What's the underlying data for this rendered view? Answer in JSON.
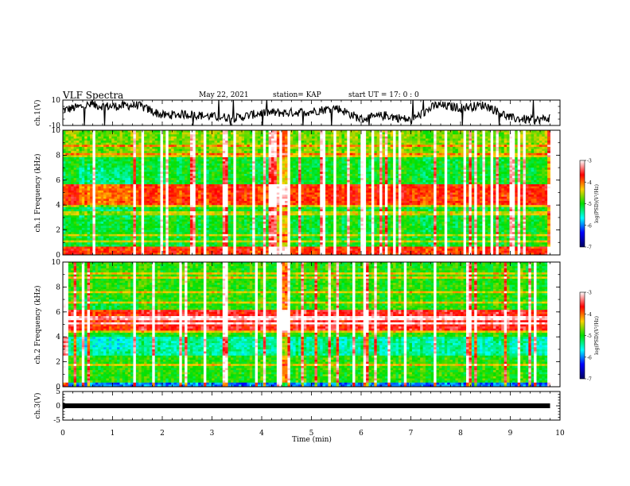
{
  "header": {
    "title": "VLF Spectra",
    "date": "May 22, 2021",
    "station": "station= KAP",
    "start": "start  UT =   17: 0  : 0"
  },
  "colorbar": {
    "label": "log(PSD)(V²/Hz)",
    "ticks": [
      -3,
      -4,
      -5,
      -6,
      -7
    ],
    "colors": [
      "#ffffff",
      "#ff0000",
      "#ffd000",
      "#00e000",
      "#00ffff",
      "#0000ff",
      "#000060"
    ]
  },
  "chart_data": [
    {
      "type": "line",
      "ylabel": "ch.1(V)",
      "ylim": [
        -10,
        10
      ],
      "yticks": [
        -10,
        10
      ],
      "xlim": [
        0,
        10
      ],
      "note_values": "approximate waveform envelope",
      "x": [
        0,
        0.5,
        1.0,
        1.5,
        2.0,
        2.5,
        3.0,
        3.5,
        4.0,
        4.5,
        5.0,
        5.5,
        6.0,
        6.5,
        7.0,
        7.5,
        8.0,
        8.5,
        9.0,
        9.5,
        9.8
      ],
      "y": [
        2,
        6,
        5,
        6,
        -2,
        -1,
        -3,
        -4,
        0,
        0,
        1,
        4,
        -5,
        -2,
        -6,
        6,
        4,
        6,
        -4,
        -6,
        -4
      ]
    },
    {
      "type": "heatmap",
      "ylabel": "ch.1 Frequency (kHz)",
      "ylim": [
        0,
        10
      ],
      "yticks": [
        0,
        2,
        4,
        6,
        8,
        10
      ],
      "xlim": [
        0,
        10
      ],
      "zlim": [
        -7,
        -3
      ]
    },
    {
      "type": "heatmap",
      "ylabel": "ch.2 Frequency (kHz)",
      "ylim": [
        0,
        10
      ],
      "yticks": [
        0,
        2,
        4,
        6,
        8,
        10
      ],
      "xlim": [
        0,
        10
      ],
      "zlim": [
        -7,
        -3
      ]
    },
    {
      "type": "line",
      "ylabel": "ch.3(V)",
      "ylim": [
        -5,
        5
      ],
      "yticks": [
        -5,
        0,
        5
      ],
      "xlim": [
        0,
        10
      ],
      "x": [
        0,
        9.8
      ],
      "y": [
        0,
        0
      ]
    }
  ],
  "x_axis": {
    "label": "Time  (min)",
    "ticks": [
      0,
      1,
      2,
      3,
      4,
      5,
      6,
      7,
      8,
      9,
      10
    ]
  }
}
